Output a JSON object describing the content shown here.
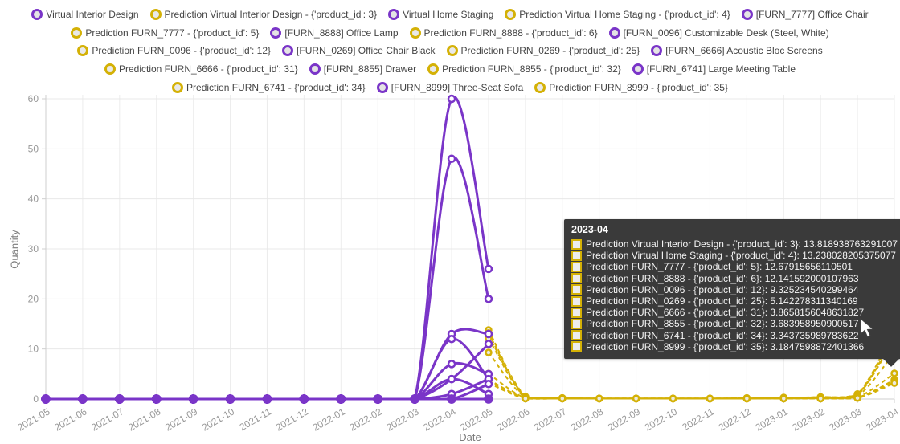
{
  "legend": {
    "items": [
      {
        "label": "Virtual Interior Design",
        "type": "actual"
      },
      {
        "label": "Prediction Virtual Interior Design - {'product_id': 3}",
        "type": "prediction"
      },
      {
        "label": "Virtual Home Staging",
        "type": "actual"
      },
      {
        "label": "Prediction Virtual Home Staging - {'product_id': 4}",
        "type": "prediction"
      },
      {
        "label": "[FURN_7777] Office Chair",
        "type": "actual"
      },
      {
        "label": "Prediction FURN_7777 - {'product_id': 5}",
        "type": "prediction"
      },
      {
        "label": "[FURN_8888] Office Lamp",
        "type": "actual"
      },
      {
        "label": "Prediction FURN_8888 - {'product_id': 6}",
        "type": "prediction"
      },
      {
        "label": "[FURN_0096] Customizable Desk (Steel, White)",
        "type": "actual"
      },
      {
        "label": "Prediction FURN_0096 - {'product_id': 12}",
        "type": "prediction"
      },
      {
        "label": "[FURN_0269] Office Chair Black",
        "type": "actual"
      },
      {
        "label": "Prediction FURN_0269 - {'product_id': 25}",
        "type": "prediction"
      },
      {
        "label": "[FURN_6666] Acoustic Bloc Screens",
        "type": "actual"
      },
      {
        "label": "Prediction FURN_6666 - {'product_id': 31}",
        "type": "prediction"
      },
      {
        "label": "[FURN_8855] Drawer",
        "type": "actual"
      },
      {
        "label": "Prediction FURN_8855 - {'product_id': 32}",
        "type": "prediction"
      },
      {
        "label": "[FURN_6741] Large Meeting Table",
        "type": "actual"
      },
      {
        "label": "Prediction FURN_6741 - {'product_id': 34}",
        "type": "prediction"
      },
      {
        "label": "[FURN_8999] Three-Seat Sofa",
        "type": "actual"
      },
      {
        "label": "Prediction FURN_8999 - {'product_id': 35}",
        "type": "prediction"
      }
    ]
  },
  "tooltip": {
    "title": "2023-04",
    "rows": [
      {
        "label": "Prediction Virtual Interior Design - {'product_id': 3}",
        "value": "13.818938763291007"
      },
      {
        "label": "Prediction Virtual Home Staging - {'product_id': 4}",
        "value": "13.238028205375077"
      },
      {
        "label": "Prediction FURN_7777 - {'product_id': 5}",
        "value": "12.67915656110501"
      },
      {
        "label": "Prediction FURN_8888 - {'product_id': 6}",
        "value": "12.141592000107963"
      },
      {
        "label": "Prediction FURN_0096 - {'product_id': 12}",
        "value": "9.325234540299464"
      },
      {
        "label": "Prediction FURN_0269 - {'product_id': 25}",
        "value": "5.142278311340169"
      },
      {
        "label": "Prediction FURN_6666 - {'product_id': 31}",
        "value": "3.8658156048631827"
      },
      {
        "label": "Prediction FURN_8855 - {'product_id': 32}",
        "value": "3.683958950900517"
      },
      {
        "label": "Prediction FURN_6741 - {'product_id': 34}",
        "value": "3.343735989783622"
      },
      {
        "label": "Prediction FURN_8999 - {'product_id': 35}",
        "value": "3.1847598872401366"
      }
    ]
  },
  "chart_data": {
    "type": "line",
    "title": "",
    "xlabel": "Date",
    "ylabel": "Quantity",
    "ylim": [
      0,
      60
    ],
    "yticks": [
      0,
      10,
      20,
      30,
      40,
      50,
      60
    ],
    "grid": true,
    "legend_position": "top",
    "x": [
      "2021-05",
      "2021-06",
      "2021-07",
      "2021-08",
      "2021-09",
      "2021-10",
      "2021-11",
      "2021-12",
      "2022-01",
      "2022-02",
      "2022-03",
      "2022-04",
      "2022-05",
      "2022-06",
      "2022-07",
      "2022-08",
      "2022-09",
      "2022-10",
      "2022-11",
      "2022-12",
      "2023-01",
      "2023-02",
      "2023-03",
      "2023-04"
    ],
    "colors": {
      "actual": "#7a35c8",
      "prediction": "#d4b106"
    },
    "series": [
      {
        "name": "Virtual Interior Design",
        "role": "actual",
        "values": [
          0,
          0,
          0,
          0,
          0,
          0,
          0,
          0,
          0,
          0,
          0,
          60,
          26,
          null,
          null,
          null,
          null,
          null,
          null,
          null,
          null,
          null,
          null,
          null
        ]
      },
      {
        "name": "Virtual Home Staging",
        "role": "actual",
        "values": [
          0,
          0,
          0,
          0,
          0,
          0,
          0,
          0,
          0,
          0,
          0,
          48,
          20,
          null,
          null,
          null,
          null,
          null,
          null,
          null,
          null,
          null,
          null,
          null
        ]
      },
      {
        "name": "[FURN_7777] Office Chair",
        "role": "actual",
        "values": [
          0,
          0,
          0,
          0,
          0,
          0,
          0,
          0,
          0,
          0,
          0,
          13,
          13,
          null,
          null,
          null,
          null,
          null,
          null,
          null,
          null,
          null,
          null,
          null
        ]
      },
      {
        "name": "[FURN_8888] Office Lamp",
        "role": "actual",
        "values": [
          0,
          0,
          0,
          0,
          0,
          0,
          0,
          0,
          0,
          0,
          0,
          12,
          4,
          null,
          null,
          null,
          null,
          null,
          null,
          null,
          null,
          null,
          null,
          null
        ]
      },
      {
        "name": "[FURN_0096] Customizable Desk (Steel, White)",
        "role": "actual",
        "values": [
          0,
          0,
          0,
          0,
          0,
          0,
          0,
          0,
          0,
          0,
          0,
          4,
          11,
          null,
          null,
          null,
          null,
          null,
          null,
          null,
          null,
          null,
          null,
          null
        ]
      },
      {
        "name": "[FURN_0269] Office Chair Black",
        "role": "actual",
        "values": [
          0,
          0,
          0,
          0,
          0,
          0,
          0,
          0,
          0,
          0,
          0,
          7,
          5,
          null,
          null,
          null,
          null,
          null,
          null,
          null,
          null,
          null,
          null,
          null
        ]
      },
      {
        "name": "[FURN_6666] Acoustic Bloc Screens",
        "role": "actual",
        "values": [
          0,
          0,
          0,
          0,
          0,
          0,
          0,
          0,
          0,
          0,
          0,
          1,
          4,
          null,
          null,
          null,
          null,
          null,
          null,
          null,
          null,
          null,
          null,
          null
        ]
      },
      {
        "name": "[FURN_8855] Drawer",
        "role": "actual",
        "values": [
          0,
          0,
          0,
          0,
          0,
          0,
          0,
          0,
          0,
          0,
          0,
          0,
          3,
          null,
          null,
          null,
          null,
          null,
          null,
          null,
          null,
          null,
          null,
          null
        ]
      },
      {
        "name": "[FURN_6741] Large Meeting Table",
        "role": "actual",
        "values": [
          0,
          0,
          0,
          0,
          0,
          0,
          0,
          0,
          0,
          0,
          0,
          4,
          1,
          null,
          null,
          null,
          null,
          null,
          null,
          null,
          null,
          null,
          null,
          null
        ]
      },
      {
        "name": "[FURN_8999] Three-Seat Sofa",
        "role": "actual",
        "values": [
          0,
          0,
          0,
          0,
          0,
          0,
          0,
          0,
          0,
          0,
          0,
          0,
          0,
          null,
          null,
          null,
          null,
          null,
          null,
          null,
          null,
          null,
          null,
          null
        ]
      },
      {
        "name": "Prediction Virtual Interior Design - {'product_id': 3}",
        "role": "prediction",
        "values": [
          null,
          null,
          null,
          null,
          null,
          null,
          null,
          null,
          null,
          null,
          null,
          null,
          13.8,
          0.5,
          0.2,
          0.1,
          0.1,
          0.1,
          0.1,
          0.2,
          0.3,
          0.4,
          1.0,
          13.818938763291007
        ]
      },
      {
        "name": "Prediction Virtual Home Staging - {'product_id': 4}",
        "role": "prediction",
        "values": [
          null,
          null,
          null,
          null,
          null,
          null,
          null,
          null,
          null,
          null,
          null,
          null,
          13.2,
          0.4,
          0.2,
          0.1,
          0.1,
          0.1,
          0.1,
          0.2,
          0.3,
          0.4,
          0.9,
          13.238028205375077
        ]
      },
      {
        "name": "Prediction FURN_7777 - {'product_id': 5}",
        "role": "prediction",
        "values": [
          null,
          null,
          null,
          null,
          null,
          null,
          null,
          null,
          null,
          null,
          null,
          null,
          12.7,
          0.4,
          0.2,
          0.1,
          0.1,
          0.1,
          0.1,
          0.1,
          0.2,
          0.3,
          0.8,
          12.67915656110501
        ]
      },
      {
        "name": "Prediction FURN_8888 - {'product_id': 6}",
        "role": "prediction",
        "values": [
          null,
          null,
          null,
          null,
          null,
          null,
          null,
          null,
          null,
          null,
          null,
          null,
          12.1,
          0.3,
          0.2,
          0.1,
          0.1,
          0.1,
          0.1,
          0.1,
          0.2,
          0.3,
          0.8,
          12.141592000107963
        ]
      },
      {
        "name": "Prediction FURN_0096 - {'product_id': 12}",
        "role": "prediction",
        "values": [
          null,
          null,
          null,
          null,
          null,
          null,
          null,
          null,
          null,
          null,
          null,
          null,
          9.3,
          0.3,
          0.1,
          0.1,
          0.1,
          0.1,
          0.1,
          0.1,
          0.2,
          0.2,
          0.6,
          9.325234540299464
        ]
      },
      {
        "name": "Prediction FURN_0269 - {'product_id': 25}",
        "role": "prediction",
        "values": [
          null,
          null,
          null,
          null,
          null,
          null,
          null,
          null,
          null,
          null,
          null,
          null,
          5.1,
          0.2,
          0.1,
          0.1,
          0.1,
          0.1,
          0.1,
          0.1,
          0.1,
          0.2,
          0.4,
          5.142278311340169
        ]
      },
      {
        "name": "Prediction FURN_6666 - {'product_id': 31}",
        "role": "prediction",
        "values": [
          null,
          null,
          null,
          null,
          null,
          null,
          null,
          null,
          null,
          null,
          null,
          null,
          3.9,
          0.2,
          0.1,
          0.1,
          0.1,
          0.1,
          0.1,
          0.1,
          0.1,
          0.1,
          0.3,
          3.8658156048631827
        ]
      },
      {
        "name": "Prediction FURN_8855 - {'product_id': 32}",
        "role": "prediction",
        "values": [
          null,
          null,
          null,
          null,
          null,
          null,
          null,
          null,
          null,
          null,
          null,
          null,
          3.7,
          0.2,
          0.1,
          0.1,
          0.1,
          0.1,
          0.1,
          0.1,
          0.1,
          0.1,
          0.3,
          3.683958950900517
        ]
      },
      {
        "name": "Prediction FURN_6741 - {'product_id': 34}",
        "role": "prediction",
        "values": [
          null,
          null,
          null,
          null,
          null,
          null,
          null,
          null,
          null,
          null,
          null,
          null,
          3.3,
          0.1,
          0.1,
          0.1,
          0.1,
          0.1,
          0.1,
          0.1,
          0.1,
          0.1,
          0.2,
          3.343735989783622
        ]
      },
      {
        "name": "Prediction FURN_8999 - {'product_id': 35}",
        "role": "prediction",
        "values": [
          null,
          null,
          null,
          null,
          null,
          null,
          null,
          null,
          null,
          null,
          null,
          null,
          3.2,
          0.1,
          0.1,
          0.1,
          0.1,
          0.1,
          0.1,
          0.1,
          0.1,
          0.1,
          0.2,
          3.1847598872401366
        ]
      }
    ]
  }
}
